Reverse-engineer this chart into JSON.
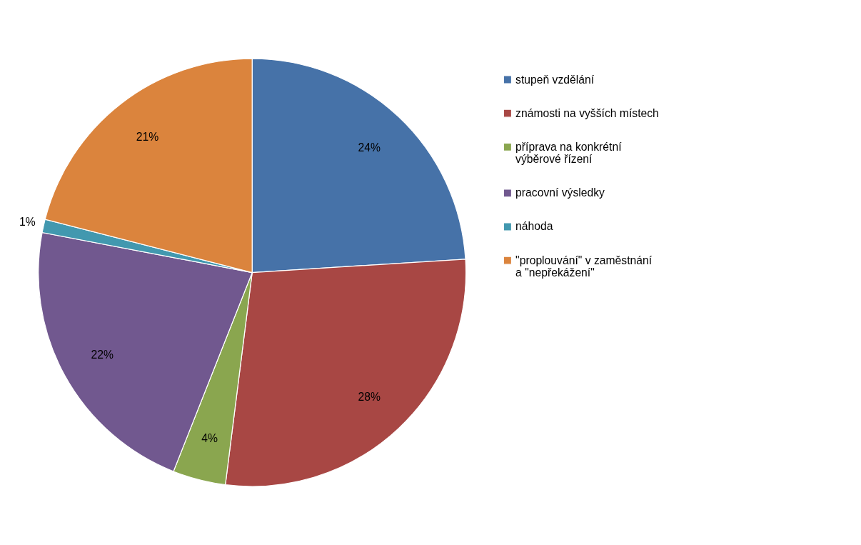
{
  "chart_data": {
    "type": "pie",
    "categories": [
      "stupeň vzdělání",
      "známosti na vyšších místech",
      "příprava na konkrétní výběrové řízení",
      "pracovní výsledky",
      "náhoda",
      "\"proplouvání\" v zaměstnání a \"nepřekážení\""
    ],
    "values": [
      24,
      28,
      4,
      22,
      1,
      21
    ],
    "colors": [
      "#4672a8",
      "#a84744",
      "#8aa64f",
      "#71588f",
      "#4298af",
      "#db843d"
    ],
    "value_labels": [
      "24%",
      "28%",
      "4%",
      "22%",
      "1%",
      "21%"
    ],
    "legend": "right"
  }
}
